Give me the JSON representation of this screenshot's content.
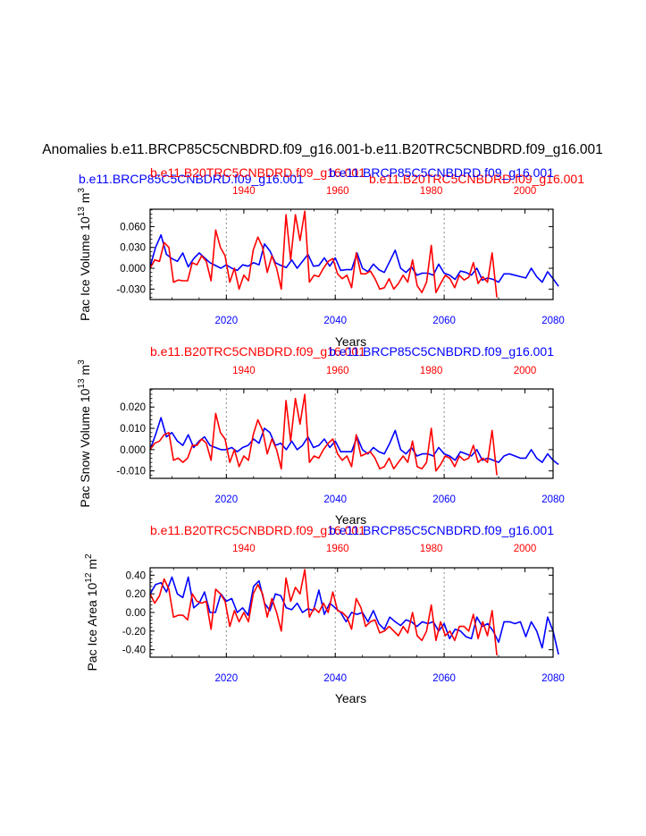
{
  "figure": {
    "main_title": "Anomalies b.e11.BRCP85C5CNBDRD.f09_g16.001-b.e11.B20TRC5CNBDRD.f09_g16.001",
    "colors": {
      "series_a": "#0000ff",
      "series_b": "#ff0000",
      "axis": "#000000",
      "grid": "#888888"
    }
  },
  "chart_data": [
    {
      "type": "line",
      "title_left": "b.e11.BRCP85C5CNBDRD.f09_g16.001",
      "title_right": "b.e11.B20TRC5CNBDRD.f09_g16.001",
      "title_left_color": "#0000ff",
      "title_right_color": "#ff0000",
      "overlay_title_red": "b.e11.B20TRC5CNBDRD.f09_g16.001",
      "overlay_title_blue": "b.e11.BRCP85C5CNBDRD.f09_g16.001",
      "ylabel": "Pac Ice Volume 10",
      "ylabel_sup": "13",
      "ylabel_unit": " m",
      "ylabel_unit_sup": "3",
      "xlabel": "Years",
      "ylim": [
        -0.045,
        0.085
      ],
      "yticks": [
        -0.03,
        0.0,
        0.03,
        0.06
      ],
      "ytick_labels": [
        "-0.030",
        "0.000",
        "0.030",
        "0.060"
      ],
      "xlim": [
        2006,
        2080
      ],
      "bottom_ticks": [
        2020,
        2040,
        2060,
        2080
      ],
      "bottom_tick_labels": [
        "2020",
        "2040",
        "2060",
        "2080"
      ],
      "top_xlim": [
        1920,
        2006
      ],
      "top_ticks": [
        1940,
        1960,
        1980,
        2000
      ],
      "top_tick_labels": [
        "1940",
        "1960",
        "1980",
        "2000"
      ],
      "gridlines_x": [
        2020,
        2040,
        2060
      ],
      "series": [
        {
          "name": "b.e11.BRCP85C5CNBDRD.f09_g16.001",
          "color": "#0000ff",
          "axis": "bottom",
          "x_start": 2006,
          "values": [
            0.002,
            0.03,
            0.048,
            0.02,
            0.014,
            0.01,
            0.022,
            0.002,
            0.014,
            0.022,
            0.015,
            0.008,
            0.004,
            0.0,
            0.005,
            0.0,
            -0.003,
            0.005,
            0.003,
            0.008,
            0.005,
            0.035,
            0.025,
            0.008,
            0.004,
            0.001,
            0.012,
            0.0,
            0.01,
            0.02,
            0.003,
            0.004,
            0.015,
            0.003,
            0.015,
            -0.003,
            -0.002,
            -0.002,
            0.022,
            0.0,
            -0.005,
            0.006,
            -0.002,
            -0.006,
            0.01,
            0.026,
            0.0,
            -0.006,
            0.002,
            -0.01,
            -0.007,
            -0.007,
            -0.01,
            0.006,
            -0.007,
            -0.01,
            -0.016,
            -0.004,
            -0.006,
            -0.01,
            0.0,
            -0.017,
            -0.014,
            -0.016,
            -0.02,
            -0.008,
            -0.008,
            -0.01,
            -0.012,
            -0.014,
            0.0,
            -0.012,
            -0.02,
            -0.005,
            -0.015,
            -0.026
          ]
        },
        {
          "name": "b.e11.B20TRC5CNBDRD.f09_g16.001",
          "color": "#ff0000",
          "axis": "top",
          "x_start": 1920,
          "values": [
            0.0,
            0.012,
            0.01,
            0.037,
            0.03,
            -0.02,
            -0.017,
            -0.018,
            -0.018,
            0.008,
            0.005,
            0.018,
            0.01,
            -0.018,
            0.055,
            0.03,
            0.018,
            -0.02,
            0.0,
            -0.03,
            -0.01,
            -0.018,
            0.026,
            0.045,
            0.03,
            -0.006,
            0.018,
            0.0,
            -0.03,
            0.077,
            0.012,
            0.077,
            0.04,
            0.082,
            -0.02,
            -0.01,
            -0.012,
            0.0,
            0.01,
            0.014,
            -0.008,
            -0.015,
            -0.01,
            -0.028,
            0.022,
            -0.008,
            -0.008,
            -0.004,
            -0.015,
            -0.03,
            -0.028,
            -0.015,
            -0.03,
            -0.022,
            -0.01,
            -0.02,
            0.012,
            -0.025,
            -0.035,
            -0.02,
            0.033,
            -0.035,
            -0.022,
            -0.01,
            -0.015,
            -0.028,
            -0.01,
            -0.017,
            -0.013,
            0.008,
            -0.022,
            -0.012,
            -0.02,
            0.022,
            -0.042
          ]
        }
      ]
    },
    {
      "type": "line",
      "title_left": "b.e11.B20TRC5CNBDRD.f09_g16.001",
      "title_right": "b.e11.BRCP85C5CNBDRD.f09_g16.001",
      "title_left_color": "#ff0000",
      "title_right_color": "#0000ff",
      "ylabel": "Pac Snow Volume 10",
      "ylabel_sup": "13",
      "ylabel_unit": " m",
      "ylabel_unit_sup": "3",
      "xlabel": "Years",
      "ylim": [
        -0.0135,
        0.0285
      ],
      "yticks": [
        -0.01,
        0.0,
        0.01,
        0.02
      ],
      "ytick_labels": [
        "-0.010",
        "0.000",
        "0.010",
        "0.020"
      ],
      "xlim": [
        2006,
        2080
      ],
      "bottom_ticks": [
        2020,
        2040,
        2060,
        2080
      ],
      "bottom_tick_labels": [
        "2020",
        "2040",
        "2060",
        "2080"
      ],
      "top_xlim": [
        1920,
        2006
      ],
      "top_ticks": [
        1940,
        1960,
        1980,
        2000
      ],
      "top_tick_labels": [
        "1940",
        "1960",
        "1980",
        "2000"
      ],
      "gridlines_x": [
        2020,
        2040,
        2060
      ],
      "series": [
        {
          "name": "b.e11.BRCP85C5CNBDRD.f09_g16.001",
          "color": "#0000ff",
          "axis": "bottom",
          "x_start": 2006,
          "values": [
            0.0,
            0.007,
            0.015,
            0.006,
            0.008,
            0.004,
            0.002,
            0.007,
            0.001,
            0.004,
            0.006,
            0.002,
            0.001,
            0.0,
            0.0,
            0.001,
            -0.001,
            0.001,
            0.002,
            0.005,
            0.003,
            0.01,
            0.008,
            0.002,
            0.003,
            0.0,
            0.004,
            0.0,
            0.002,
            0.006,
            0.001,
            0.002,
            0.005,
            0.001,
            0.004,
            -0.001,
            -0.001,
            -0.001,
            0.006,
            0.0,
            -0.002,
            0.001,
            -0.001,
            -0.002,
            0.003,
            0.009,
            0.0,
            -0.002,
            0.001,
            -0.003,
            -0.002,
            -0.002,
            -0.003,
            0.001,
            -0.002,
            -0.003,
            -0.005,
            -0.001,
            -0.002,
            -0.003,
            0.0,
            -0.005,
            -0.004,
            -0.005,
            -0.006,
            -0.003,
            -0.002,
            -0.003,
            -0.004,
            -0.004,
            0.0,
            -0.004,
            -0.006,
            -0.002,
            -0.005,
            -0.007
          ]
        },
        {
          "name": "b.e11.B20TRC5CNBDRD.f09_g16.001",
          "color": "#ff0000",
          "axis": "top",
          "x_start": 1920,
          "values": [
            0.0,
            0.003,
            0.004,
            0.007,
            0.008,
            -0.005,
            -0.004,
            -0.006,
            -0.004,
            0.002,
            0.002,
            0.005,
            0.003,
            -0.005,
            0.017,
            0.008,
            0.005,
            -0.006,
            0.0,
            -0.008,
            -0.003,
            -0.005,
            0.007,
            0.014,
            0.009,
            -0.002,
            0.005,
            0.0,
            -0.009,
            0.023,
            0.004,
            0.024,
            0.012,
            0.026,
            -0.006,
            -0.003,
            -0.004,
            0.0,
            0.003,
            0.005,
            -0.002,
            -0.005,
            -0.003,
            -0.008,
            0.007,
            -0.003,
            -0.002,
            -0.001,
            -0.004,
            -0.009,
            -0.008,
            -0.004,
            -0.009,
            -0.006,
            -0.003,
            -0.006,
            0.004,
            -0.008,
            -0.009,
            -0.006,
            0.01,
            -0.01,
            -0.007,
            -0.003,
            -0.004,
            -0.008,
            -0.003,
            -0.005,
            -0.004,
            0.002,
            -0.006,
            -0.004,
            -0.006,
            0.009,
            -0.012
          ]
        }
      ]
    },
    {
      "type": "line",
      "title_left": "b.e11.B20TRC5CNBDRD.f09_g16.001",
      "title_right": "b.e11.BRCP85C5CNBDRD.f09_g16.001",
      "title_left_color": "#ff0000",
      "title_right_color": "#0000ff",
      "ylabel": "Pac Ice Area 10",
      "ylabel_sup": "12",
      "ylabel_unit": " m",
      "ylabel_unit_sup": "2",
      "xlabel": "Years",
      "ylim": [
        -0.48,
        0.48
      ],
      "yticks": [
        -0.4,
        -0.2,
        0.0,
        0.2,
        0.4
      ],
      "ytick_labels": [
        "-0.40",
        "-0.20",
        "0.00",
        "0.20",
        "0.40"
      ],
      "xlim": [
        2006,
        2080
      ],
      "bottom_ticks": [
        2020,
        2040,
        2060,
        2080
      ],
      "bottom_tick_labels": [
        "2020",
        "2040",
        "2060",
        "2080"
      ],
      "top_xlim": [
        1920,
        2006
      ],
      "top_ticks": [
        1940,
        1960,
        1980,
        2000
      ],
      "top_tick_labels": [
        "1940",
        "1960",
        "1980",
        "2000"
      ],
      "gridlines_x": [
        2020,
        2040,
        2060
      ],
      "series": [
        {
          "name": "b.e11.BRCP85C5CNBDRD.f09_g16.001",
          "color": "#0000ff",
          "axis": "bottom",
          "x_start": 2006,
          "values": [
            0.2,
            0.3,
            0.32,
            0.22,
            0.38,
            0.2,
            0.16,
            0.38,
            0.05,
            0.1,
            0.22,
            0.0,
            0.0,
            0.2,
            0.12,
            0.15,
            0.0,
            0.05,
            -0.03,
            0.28,
            0.34,
            0.1,
            0.02,
            0.2,
            0.18,
            0.05,
            0.03,
            0.1,
            0.0,
            0.04,
            0.02,
            0.24,
            -0.02,
            0.1,
            0.05,
            0.0,
            -0.1,
            0.0,
            -0.02,
            0.0,
            -0.1,
            0.02,
            -0.12,
            -0.18,
            -0.05,
            -0.1,
            -0.14,
            -0.08,
            -0.1,
            -0.15,
            -0.1,
            -0.12,
            -0.1,
            -0.2,
            -0.12,
            -0.28,
            -0.18,
            -0.2,
            -0.26,
            -0.28,
            -0.05,
            -0.15,
            -0.12,
            -0.2,
            -0.32,
            -0.1,
            -0.1,
            -0.12,
            -0.1,
            -0.26,
            -0.1,
            -0.2,
            -0.38,
            -0.05,
            -0.2,
            -0.45
          ]
        },
        {
          "name": "b.e11.B20TRC5CNBDRD.f09_g16.001",
          "color": "#ff0000",
          "axis": "top",
          "x_start": 1920,
          "values": [
            0.2,
            0.1,
            0.18,
            0.36,
            0.25,
            -0.05,
            -0.03,
            -0.03,
            -0.08,
            0.2,
            0.12,
            0.1,
            0.12,
            -0.18,
            0.25,
            0.2,
            0.12,
            -0.15,
            0.02,
            -0.1,
            0.0,
            -0.1,
            0.2,
            0.3,
            0.2,
            -0.05,
            0.15,
            0.0,
            -0.2,
            0.37,
            0.12,
            0.27,
            0.2,
            0.46,
            -0.05,
            0.05,
            0.0,
            0.1,
            0.0,
            0.22,
            0.02,
            0.0,
            -0.05,
            -0.18,
            0.15,
            0.05,
            -0.15,
            -0.1,
            -0.08,
            -0.22,
            -0.2,
            -0.15,
            -0.2,
            -0.25,
            -0.15,
            -0.22,
            0.0,
            -0.25,
            -0.3,
            -0.2,
            0.08,
            -0.3,
            -0.1,
            -0.25,
            -0.2,
            -0.3,
            -0.15,
            -0.15,
            -0.2,
            -0.02,
            -0.28,
            -0.1,
            -0.25,
            0.02,
            -0.46
          ]
        }
      ]
    }
  ]
}
